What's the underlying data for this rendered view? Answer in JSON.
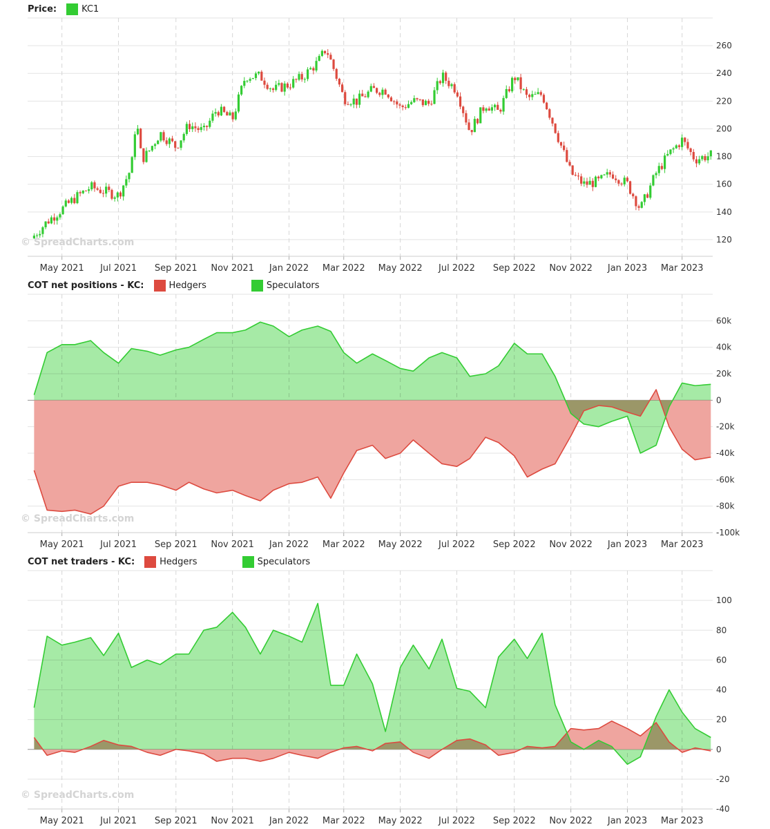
{
  "colors": {
    "green": "#33cc33",
    "red": "#dd4a3f",
    "greenFill": "#96e696",
    "redFill": "#efa59f",
    "overlap": "#8faa55"
  },
  "watermark": "© SpreadCharts.com",
  "x_labels": [
    "May 2021",
    "Jul 2021",
    "Sep 2021",
    "Nov 2021",
    "Jan 2022",
    "Mar 2022",
    "May 2022",
    "Jul 2022",
    "Sep 2022",
    "Nov 2022",
    "Jan 2023",
    "Mar 2023"
  ],
  "panels": [
    {
      "title": "Price:",
      "legend": [
        {
          "label": "KC1",
          "color": "#33cc33"
        }
      ]
    },
    {
      "title": "COT net positions - KC:",
      "legend": [
        {
          "label": "Hedgers",
          "color": "#dd4a3f"
        },
        {
          "label": "Speculators",
          "color": "#33cc33"
        }
      ]
    },
    {
      "title": "COT net traders - KC:",
      "legend": [
        {
          "label": "Hedgers",
          "color": "#dd4a3f"
        },
        {
          "label": "Speculators",
          "color": "#33cc33"
        }
      ]
    }
  ],
  "chart_data": [
    {
      "type": "line",
      "name": "price",
      "series_name": "KC1",
      "y_ticks": [
        "260",
        "240",
        "220",
        "200",
        "180",
        "160",
        "140",
        "120"
      ],
      "y_tick_values": [
        260,
        240,
        220,
        200,
        180,
        160,
        140,
        120
      ],
      "ylim": [
        108,
        280
      ],
      "x": [
        "2021-04-01",
        "2021-04-15",
        "2021-05-01",
        "2021-05-15",
        "2021-06-01",
        "2021-06-15",
        "2021-07-01",
        "2021-07-15",
        "2021-07-20",
        "2021-07-26",
        "2021-08-01",
        "2021-08-15",
        "2021-09-01",
        "2021-09-15",
        "2021-10-01",
        "2021-10-15",
        "2021-11-01",
        "2021-11-15",
        "2021-12-01",
        "2021-12-15",
        "2022-01-01",
        "2022-01-15",
        "2022-02-01",
        "2022-02-10",
        "2022-02-20",
        "2022-03-01",
        "2022-03-15",
        "2022-04-01",
        "2022-04-15",
        "2022-05-01",
        "2022-05-15",
        "2022-06-01",
        "2022-06-15",
        "2022-07-01",
        "2022-07-15",
        "2022-08-01",
        "2022-08-15",
        "2022-09-01",
        "2022-09-15",
        "2022-10-01",
        "2022-10-15",
        "2022-11-01",
        "2022-11-15",
        "2022-12-01",
        "2022-12-15",
        "2023-01-01",
        "2023-01-15",
        "2023-02-01",
        "2023-02-15",
        "2023-03-01",
        "2023-03-15",
        "2023-04-01"
      ],
      "y": [
        123,
        133,
        142,
        150,
        158,
        155,
        152,
        172,
        208,
        178,
        182,
        197,
        187,
        203,
        198,
        214,
        207,
        238,
        238,
        228,
        232,
        237,
        248,
        258,
        240,
        222,
        220,
        228,
        228,
        215,
        220,
        218,
        238,
        228,
        198,
        218,
        212,
        238,
        222,
        225,
        200,
        168,
        160,
        162,
        168,
        160,
        142,
        168,
        182,
        192,
        178,
        181
      ]
    },
    {
      "type": "area",
      "name": "cot-net-positions",
      "y_ticks": [
        "60k",
        "40k",
        "20k",
        "0",
        "-20k",
        "-40k",
        "-60k",
        "-80k",
        "-100k"
      ],
      "y_tick_values": [
        60000,
        40000,
        20000,
        0,
        -20000,
        -40000,
        -60000,
        -80000,
        -100000
      ],
      "ylim": [
        -100000,
        80000
      ],
      "x": [
        "2021-04-01",
        "2021-04-15",
        "2021-05-01",
        "2021-05-15",
        "2021-06-01",
        "2021-06-15",
        "2021-07-01",
        "2021-07-15",
        "2021-08-01",
        "2021-08-15",
        "2021-09-01",
        "2021-09-15",
        "2021-10-01",
        "2021-10-15",
        "2021-11-01",
        "2021-11-15",
        "2021-12-01",
        "2021-12-15",
        "2022-01-01",
        "2022-01-15",
        "2022-02-01",
        "2022-02-15",
        "2022-03-01",
        "2022-03-15",
        "2022-04-01",
        "2022-04-15",
        "2022-05-01",
        "2022-05-15",
        "2022-06-01",
        "2022-06-15",
        "2022-07-01",
        "2022-07-15",
        "2022-08-01",
        "2022-08-15",
        "2022-09-01",
        "2022-09-15",
        "2022-10-01",
        "2022-10-15",
        "2022-11-01",
        "2022-11-15",
        "2022-12-01",
        "2022-12-15",
        "2023-01-01",
        "2023-01-15",
        "2023-02-01",
        "2023-02-15",
        "2023-03-01",
        "2023-03-15",
        "2023-04-01"
      ],
      "series": [
        {
          "name": "Hedgers",
          "values": [
            -53000,
            -83000,
            -84000,
            -83000,
            -86000,
            -80000,
            -65000,
            -62000,
            -62000,
            -64000,
            -68000,
            -62000,
            -67000,
            -70000,
            -68000,
            -72000,
            -76000,
            -68000,
            -63000,
            -62000,
            -58000,
            -74000,
            -55000,
            -38000,
            -34000,
            -44000,
            -40000,
            -30000,
            -40000,
            -48000,
            -50000,
            -44000,
            -28000,
            -32000,
            -42000,
            -58000,
            -52000,
            -48000,
            -27000,
            -8000,
            -4000,
            -5000,
            -9000,
            -12000,
            8000,
            -20000,
            -37000,
            -45000,
            -43000
          ]
        },
        {
          "name": "Speculators",
          "values": [
            4000,
            36000,
            42000,
            42000,
            45000,
            36000,
            28000,
            39000,
            37000,
            34000,
            38000,
            40000,
            46000,
            51000,
            51000,
            53000,
            59000,
            56000,
            48000,
            53000,
            56000,
            52000,
            36000,
            28000,
            35000,
            30000,
            24000,
            22000,
            32000,
            36000,
            32000,
            18000,
            20000,
            26000,
            43000,
            35000,
            35000,
            18000,
            -10000,
            -18000,
            -20000,
            -16000,
            -12000,
            -40000,
            -34000,
            -5000,
            13000,
            11000,
            12000
          ]
        }
      ]
    },
    {
      "type": "area",
      "name": "cot-net-traders",
      "y_ticks": [
        "100",
        "80",
        "60",
        "40",
        "20",
        "0",
        "-20",
        "-40"
      ],
      "y_tick_values": [
        100,
        80,
        60,
        40,
        20,
        0,
        -20,
        -40
      ],
      "ylim": [
        -40,
        120
      ],
      "x": [
        "2021-04-01",
        "2021-04-15",
        "2021-05-01",
        "2021-05-15",
        "2021-06-01",
        "2021-06-15",
        "2021-07-01",
        "2021-07-15",
        "2021-08-01",
        "2021-08-15",
        "2021-09-01",
        "2021-09-15",
        "2021-10-01",
        "2021-10-15",
        "2021-11-01",
        "2021-11-15",
        "2021-12-01",
        "2021-12-15",
        "2022-01-01",
        "2022-01-15",
        "2022-02-01",
        "2022-02-15",
        "2022-03-01",
        "2022-03-15",
        "2022-04-01",
        "2022-04-15",
        "2022-05-01",
        "2022-05-15",
        "2022-06-01",
        "2022-06-15",
        "2022-07-01",
        "2022-07-15",
        "2022-08-01",
        "2022-08-15",
        "2022-09-01",
        "2022-09-15",
        "2022-10-01",
        "2022-10-15",
        "2022-11-01",
        "2022-11-15",
        "2022-12-01",
        "2022-12-15",
        "2023-01-01",
        "2023-01-15",
        "2023-02-01",
        "2023-02-15",
        "2023-03-01",
        "2023-03-15",
        "2023-04-01"
      ],
      "series": [
        {
          "name": "Hedgers",
          "values": [
            8,
            -4,
            -1,
            -2,
            2,
            6,
            3,
            2,
            -2,
            -4,
            0,
            -1,
            -3,
            -8,
            -6,
            -6,
            -8,
            -6,
            -2,
            -4,
            -6,
            -2,
            1,
            2,
            -1,
            4,
            5,
            -2,
            -6,
            0,
            6,
            7,
            3,
            -4,
            -2,
            2,
            1,
            2,
            14,
            13,
            14,
            19,
            14,
            9,
            18,
            5,
            -2,
            1,
            -1
          ]
        },
        {
          "name": "Speculators",
          "values": [
            28,
            76,
            70,
            72,
            75,
            63,
            78,
            55,
            60,
            57,
            64,
            64,
            80,
            82,
            92,
            82,
            64,
            80,
            76,
            72,
            98,
            43,
            43,
            64,
            44,
            12,
            55,
            70,
            54,
            74,
            41,
            39,
            28,
            62,
            74,
            61,
            78,
            30,
            5,
            0,
            6,
            2,
            -10,
            -5,
            22,
            40,
            25,
            14,
            8
          ]
        }
      ]
    }
  ]
}
